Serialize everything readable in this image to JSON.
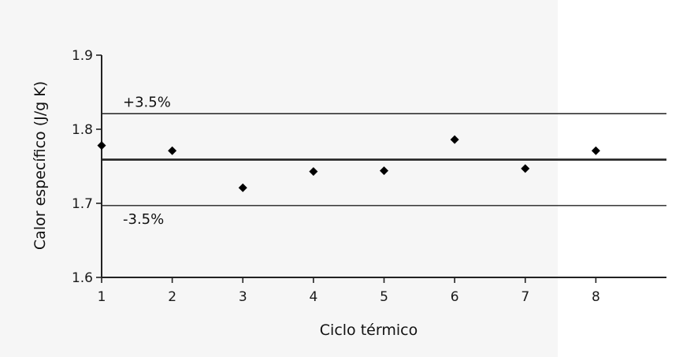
{
  "chart_data": {
    "type": "scatter",
    "title": "",
    "xlabel": "Ciclo térmico",
    "ylabel": "Calor específico (J/g K)",
    "xlim": [
      1,
      9
    ],
    "ylim": [
      1.6,
      1.9
    ],
    "x_ticks": [
      1,
      2,
      3,
      4,
      5,
      6,
      7,
      8
    ],
    "y_ticks": [
      1.6,
      1.7,
      1.8,
      1.9
    ],
    "x_tick_labels": [
      "1",
      "2",
      "3",
      "4",
      "5",
      "6",
      "7",
      "8"
    ],
    "y_tick_labels": [
      "1.6",
      "1.7",
      "1.8",
      "1.9"
    ],
    "grid": false,
    "marker": "diamond",
    "marker_color": "#000000",
    "series": [
      {
        "x": [
          1,
          2,
          3,
          4,
          5,
          6,
          7,
          8
        ],
        "y": [
          1.778,
          1.771,
          1.721,
          1.743,
          1.744,
          1.786,
          1.747,
          1.771
        ]
      }
    ],
    "reference_lines": [
      {
        "y": 1.759,
        "label": ""
      },
      {
        "y": 1.821,
        "label": "+3.5%"
      },
      {
        "y": 1.697,
        "label": "-3.5%"
      }
    ]
  }
}
